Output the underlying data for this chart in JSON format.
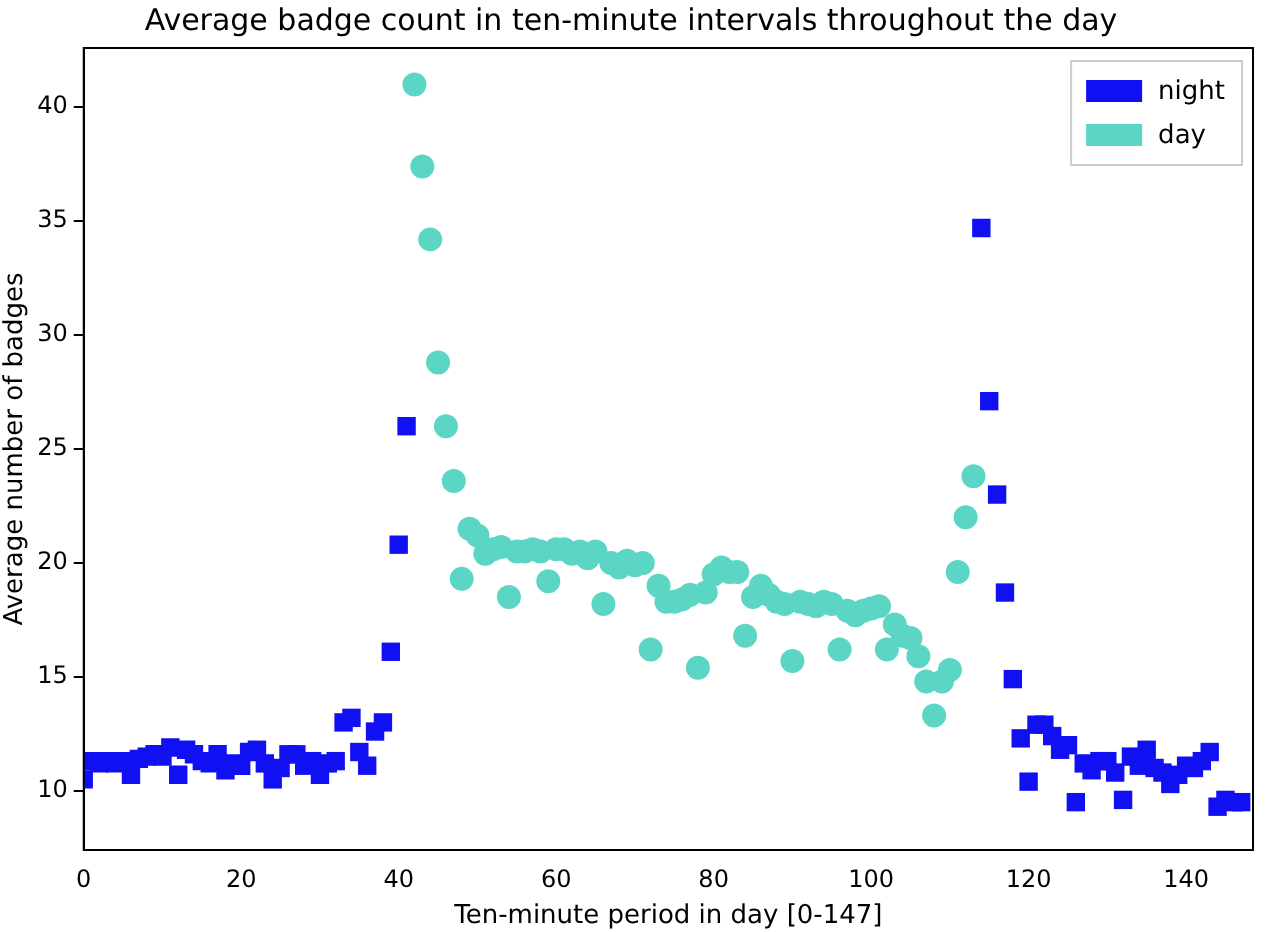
{
  "chart_data": {
    "type": "scatter",
    "title": "Average badge count in ten-minute intervals throughout the day",
    "xlabel": "Ten-minute period in day [0-147]",
    "ylabel": "Average number of badges",
    "xlim": [
      0,
      148.5
    ],
    "ylim": [
      7.4,
      42.6
    ],
    "xticks": [
      0,
      20,
      40,
      60,
      80,
      100,
      120,
      140
    ],
    "yticks": [
      10,
      15,
      20,
      25,
      30,
      35,
      40
    ],
    "grid": false,
    "legend": "top right",
    "series": [
      {
        "name": "night",
        "color": "#1010f2",
        "marker": "square",
        "x": [
          0,
          1,
          2,
          3,
          4,
          5,
          6,
          7,
          8,
          9,
          10,
          11,
          12,
          13,
          14,
          15,
          16,
          17,
          18,
          19,
          20,
          21,
          22,
          23,
          24,
          25,
          26,
          27,
          28,
          29,
          30,
          31,
          32,
          33,
          34,
          35,
          36,
          37,
          38,
          39,
          40,
          41,
          114,
          115,
          116,
          117,
          118,
          119,
          120,
          121,
          122,
          123,
          124,
          125,
          126,
          127,
          128,
          129,
          130,
          131,
          132,
          133,
          134,
          135,
          136,
          137,
          138,
          139,
          140,
          141,
          142,
          143,
          144,
          145,
          146,
          147
        ],
        "values": [
          10.5,
          11.3,
          11.2,
          11.3,
          11.2,
          11.3,
          10.7,
          11.4,
          11.5,
          11.6,
          11.5,
          11.9,
          10.7,
          11.8,
          11.6,
          11.3,
          11.2,
          11.6,
          10.9,
          11.2,
          11.1,
          11.7,
          11.8,
          11.2,
          10.5,
          11.0,
          11.6,
          11.6,
          11.1,
          11.3,
          10.7,
          11.2,
          11.3,
          13.0,
          13.2,
          11.7,
          11.1,
          12.6,
          13.0,
          16.1,
          20.8,
          26.0,
          34.7,
          27.1,
          23.0,
          18.7,
          14.9,
          12.3,
          10.4,
          12.9,
          12.9,
          12.4,
          11.8,
          12.0,
          9.5,
          11.2,
          10.9,
          11.3,
          11.3,
          10.8,
          9.6,
          11.5,
          11.1,
          11.8,
          11.0,
          10.8,
          10.3,
          10.7,
          11.1,
          11.0,
          11.3,
          11.7,
          9.3,
          9.6,
          9.5,
          9.5
        ]
      },
      {
        "name": "day",
        "color": "#5cd6c4",
        "marker": "circle",
        "x": [
          42,
          43,
          44,
          45,
          46,
          47,
          48,
          49,
          50,
          51,
          52,
          53,
          54,
          55,
          56,
          57,
          58,
          59,
          60,
          61,
          62,
          63,
          64,
          65,
          66,
          67,
          68,
          69,
          70,
          71,
          72,
          73,
          74,
          75,
          76,
          77,
          78,
          79,
          80,
          81,
          82,
          83,
          84,
          85,
          86,
          87,
          88,
          89,
          90,
          91,
          92,
          93,
          94,
          95,
          96,
          97,
          98,
          99,
          100,
          101,
          102,
          103,
          104,
          105,
          106,
          107,
          108,
          109,
          110,
          111,
          112,
          113
        ],
        "values": [
          41.0,
          37.4,
          34.2,
          28.8,
          26.0,
          23.6,
          19.3,
          21.5,
          21.2,
          20.4,
          20.6,
          20.7,
          18.5,
          20.5,
          20.5,
          20.6,
          20.5,
          19.2,
          20.6,
          20.6,
          20.4,
          20.5,
          20.2,
          20.5,
          18.2,
          20.0,
          19.8,
          20.1,
          19.9,
          20.0,
          16.2,
          19.0,
          18.3,
          18.3,
          18.4,
          18.6,
          15.4,
          18.7,
          19.5,
          19.8,
          19.6,
          19.6,
          16.8,
          18.5,
          19.0,
          18.6,
          18.3,
          18.2,
          15.7,
          18.3,
          18.2,
          18.1,
          18.3,
          18.2,
          16.2,
          17.9,
          17.7,
          17.9,
          18.0,
          18.1,
          16.2,
          17.3,
          16.8,
          16.7,
          15.9,
          14.8,
          13.3,
          14.8,
          15.3,
          19.6,
          22.0,
          23.8
        ]
      }
    ]
  }
}
